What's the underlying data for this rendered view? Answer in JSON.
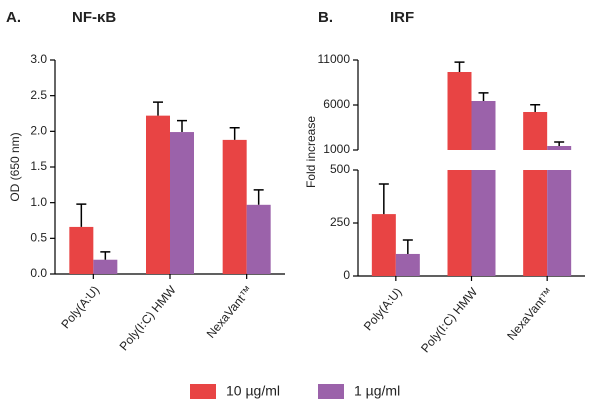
{
  "chart_data": [
    {
      "type": "bar",
      "panel": "A.",
      "title": "NF-κB",
      "y_label": "OD (650 nm)",
      "categories": [
        "Poly(A:U)",
        "Poly(I:C) HMW",
        "NexaVant™"
      ],
      "ylim": [
        0,
        3
      ],
      "yticks": [
        {
          "value": 0,
          "label": "0.0"
        },
        0.5,
        {
          "value": 1,
          "label": "1.0"
        },
        1.5,
        {
          "value": 2,
          "label": "2.0"
        },
        2.5,
        {
          "value": 3,
          "label": "3.0"
        }
      ],
      "series": [
        {
          "name": "10 µg/ml",
          "color": "#e84444",
          "values": [
            0.66,
            2.22,
            1.88
          ],
          "errors": [
            0.32,
            0.19,
            0.17
          ]
        },
        {
          "name": "1 µg/ml",
          "color": "#9b62aa",
          "values": [
            0.2,
            1.99,
            0.97
          ],
          "errors": [
            0.11,
            0.16,
            0.21
          ]
        }
      ]
    },
    {
      "type": "bar",
      "panel": "B.",
      "title": "IRF",
      "y_label": "Fold increase",
      "categories": [
        "Poly(A:U)",
        "Poly(I:C) HMW",
        "NexaVant™"
      ],
      "segments": [
        {
          "ylim": [
            0,
            500
          ],
          "yticks": [
            0,
            250,
            500
          ]
        },
        {
          "ylim": [
            1000,
            11000
          ],
          "yticks": [
            1000,
            6000,
            11000
          ]
        }
      ],
      "series": [
        {
          "name": "10 µg/ml",
          "color": "#e84444",
          "values": [
            292,
            9667,
            5222
          ],
          "errors": [
            142,
            1100,
            800
          ]
        },
        {
          "name": "1 µg/ml",
          "color": "#9b62aa",
          "values": [
            104,
            6444,
            1444
          ],
          "errors": [
            66,
            900,
            450
          ]
        }
      ]
    }
  ]
}
